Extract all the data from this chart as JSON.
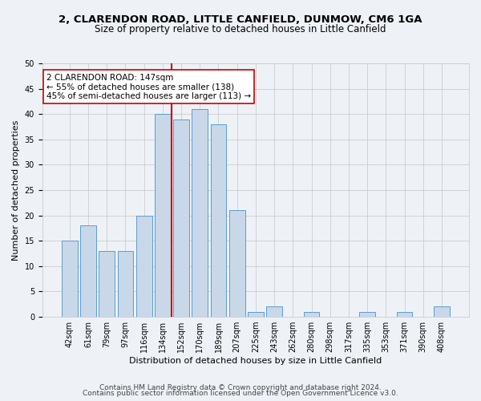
{
  "title1": "2, CLARENDON ROAD, LITTLE CANFIELD, DUNMOW, CM6 1GA",
  "title2": "Size of property relative to detached houses in Little Canfield",
  "xlabel": "Distribution of detached houses by size in Little Canfield",
  "ylabel": "Number of detached properties",
  "categories": [
    "42sqm",
    "61sqm",
    "79sqm",
    "97sqm",
    "116sqm",
    "134sqm",
    "152sqm",
    "170sqm",
    "189sqm",
    "207sqm",
    "225sqm",
    "243sqm",
    "262sqm",
    "280sqm",
    "298sqm",
    "317sqm",
    "335sqm",
    "353sqm",
    "371sqm",
    "390sqm",
    "408sqm"
  ],
  "values": [
    15,
    18,
    13,
    13,
    20,
    40,
    39,
    41,
    38,
    21,
    1,
    2,
    0,
    1,
    0,
    0,
    1,
    0,
    1,
    0,
    2
  ],
  "bar_color": "#c8d8e8",
  "bar_edge_color": "#5b9bd5",
  "vline_x": 5.5,
  "vline_color": "#cc0000",
  "annotation_title": "2 CLARENDON ROAD: 147sqm",
  "annotation_line1": "← 55% of detached houses are smaller (138)",
  "annotation_line2": "45% of semi-detached houses are larger (113) →",
  "annotation_box_color": "#ffffff",
  "annotation_box_edge": "#cc0000",
  "ylim": [
    0,
    50
  ],
  "yticks": [
    0,
    5,
    10,
    15,
    20,
    25,
    30,
    35,
    40,
    45,
    50
  ],
  "footer1": "Contains HM Land Registry data © Crown copyright and database right 2024.",
  "footer2": "Contains public sector information licensed under the Open Government Licence v3.0.",
  "bg_color": "#eef2f7",
  "plot_bg_color": "#eef2f7",
  "grid_color": "#cccccc",
  "title1_fontsize": 9.5,
  "title2_fontsize": 8.5,
  "xlabel_fontsize": 8,
  "ylabel_fontsize": 8,
  "tick_fontsize": 7,
  "footer_fontsize": 6.5,
  "ann_fontsize": 7.5
}
